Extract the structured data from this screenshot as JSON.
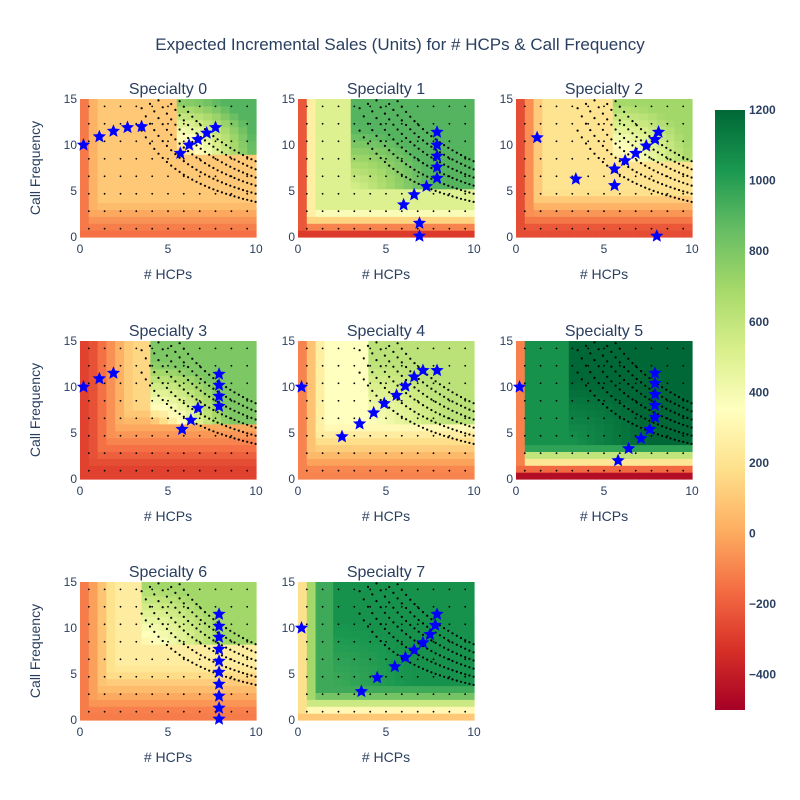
{
  "chart_data": {
    "type": "heatmap",
    "title": "Expected Incremental Sales (Units) for # HCPs & Call Frequency",
    "xlabel": "# HCPs",
    "ylabel": "Call Frequency",
    "xlim": [
      0,
      10
    ],
    "ylim": [
      0,
      15
    ],
    "x_ticks": [
      0,
      5,
      10
    ],
    "y_ticks": [
      0,
      5,
      10,
      15
    ],
    "colorscale": "RdYlGn",
    "colorbar": {
      "range": [
        -500,
        1200
      ],
      "ticks": [
        -400,
        -200,
        0,
        200,
        400,
        600,
        800,
        1000,
        1200
      ],
      "tick_labels": [
        "−400",
        "−200",
        "0",
        "200",
        "400",
        "600",
        "800",
        "1000",
        "1200"
      ]
    },
    "marker_color": "#0000ff",
    "panels": [
      {
        "title": "Specialty 0",
        "base": 100,
        "high": 900,
        "x0": 5.5,
        "y0": 9,
        "xlow": 1,
        "ylow": 4,
        "low": -150,
        "stars": [
          [
            0.2,
            10
          ],
          [
            1.1,
            10.9
          ],
          [
            1.9,
            11.5
          ],
          [
            2.7,
            11.9
          ],
          [
            3.5,
            12
          ],
          [
            5.7,
            9.1
          ],
          [
            6.2,
            10
          ],
          [
            6.7,
            10.6
          ],
          [
            7.2,
            11.3
          ],
          [
            7.7,
            11.9
          ]
        ]
      },
      {
        "title": "Specialty 1",
        "base": 500,
        "high": 900,
        "x0": 3,
        "y0": 5,
        "xlow": 1,
        "ylow": 3,
        "low": -300,
        "stars": [
          [
            6,
            3.5
          ],
          [
            6.6,
            4.6
          ],
          [
            7.3,
            5.5
          ],
          [
            7.9,
            6.4
          ],
          [
            7.9,
            7.6
          ],
          [
            7.9,
            8.8
          ],
          [
            7.9,
            10
          ],
          [
            7.9,
            11.4
          ],
          [
            6.9,
            1.5
          ],
          [
            6.9,
            0.1
          ]
        ]
      },
      {
        "title": "Specialty 2",
        "base": 200,
        "high": 700,
        "x0": 5.5,
        "y0": 8,
        "xlow": 1.5,
        "ylow": 5,
        "low": -250,
        "stars": [
          [
            1.2,
            10.8
          ],
          [
            3.4,
            6.3
          ],
          [
            5.6,
            5.6
          ],
          [
            5.6,
            7.4
          ],
          [
            6.2,
            8.3
          ],
          [
            6.8,
            9.1
          ],
          [
            7.4,
            9.9
          ],
          [
            7.9,
            10.6
          ],
          [
            8.1,
            11.4
          ],
          [
            8,
            0.1
          ]
        ]
      },
      {
        "title": "Specialty 3",
        "base": 150,
        "high": 800,
        "x0": 4,
        "y0": 6,
        "xlow": 3,
        "ylow": 8,
        "low": -280,
        "stars": [
          [
            0.2,
            10
          ],
          [
            1.1,
            10.9
          ],
          [
            1.9,
            11.5
          ],
          [
            5.8,
            5.4
          ],
          [
            6.3,
            6.4
          ],
          [
            6.7,
            7.7
          ],
          [
            7.9,
            7.9
          ],
          [
            7.9,
            9
          ],
          [
            7.9,
            10.2
          ],
          [
            7.9,
            11.4
          ]
        ]
      },
      {
        "title": "Specialty 4",
        "base": 350,
        "high": 620,
        "x0": 4,
        "y0": 6,
        "xlow": 1.5,
        "ylow": 6,
        "low": -100,
        "stars": [
          [
            0.2,
            10
          ],
          [
            2.5,
            4.6
          ],
          [
            3.5,
            6
          ],
          [
            4.3,
            7.2
          ],
          [
            4.9,
            8.2
          ],
          [
            5.6,
            9.1
          ],
          [
            6.1,
            10.1
          ],
          [
            6.6,
            11.1
          ],
          [
            7.1,
            11.8
          ],
          [
            7.9,
            11.8
          ]
        ]
      },
      {
        "title": "Specialty 5",
        "base": 1050,
        "high": 1200,
        "x0": 3,
        "y0": 4,
        "xlow": 0.7,
        "ylow": 3.5,
        "low": -450,
        "stars": [
          [
            0.2,
            10
          ],
          [
            5.8,
            2
          ],
          [
            6.4,
            3.3
          ],
          [
            7.1,
            4.4
          ],
          [
            7.6,
            5.4
          ],
          [
            7.9,
            6.7
          ],
          [
            7.9,
            8
          ],
          [
            7.9,
            9.2
          ],
          [
            7.9,
            10.4
          ],
          [
            7.9,
            11.5
          ]
        ]
      },
      {
        "title": "Specialty 6",
        "base": 250,
        "high": 700,
        "x0": 3.5,
        "y0": 8,
        "xlow": 2,
        "ylow": 6,
        "low": -120,
        "stars": [
          [
            7.9,
            0.1
          ],
          [
            7.9,
            1.3
          ],
          [
            7.9,
            2.6
          ],
          [
            7.9,
            3.9
          ],
          [
            7.9,
            5.2
          ],
          [
            7.9,
            6.4
          ],
          [
            7.9,
            7.7
          ],
          [
            7.9,
            9
          ],
          [
            7.9,
            10.2
          ],
          [
            7.9,
            11.5
          ]
        ]
      },
      {
        "title": "Specialty 7",
        "base": 950,
        "high": 1050,
        "x0": 2,
        "y0": 4,
        "xlow": 1,
        "ylow": 3,
        "low": 100,
        "stars": [
          [
            0.2,
            10
          ],
          [
            3.6,
            3.1
          ],
          [
            4.5,
            4.6
          ],
          [
            5.5,
            5.8
          ],
          [
            6.1,
            6.8
          ],
          [
            6.6,
            7.6
          ],
          [
            7.1,
            8.4
          ],
          [
            7.5,
            9.3
          ],
          [
            7.8,
            10.3
          ],
          [
            7.9,
            11.5
          ]
        ]
      }
    ]
  }
}
